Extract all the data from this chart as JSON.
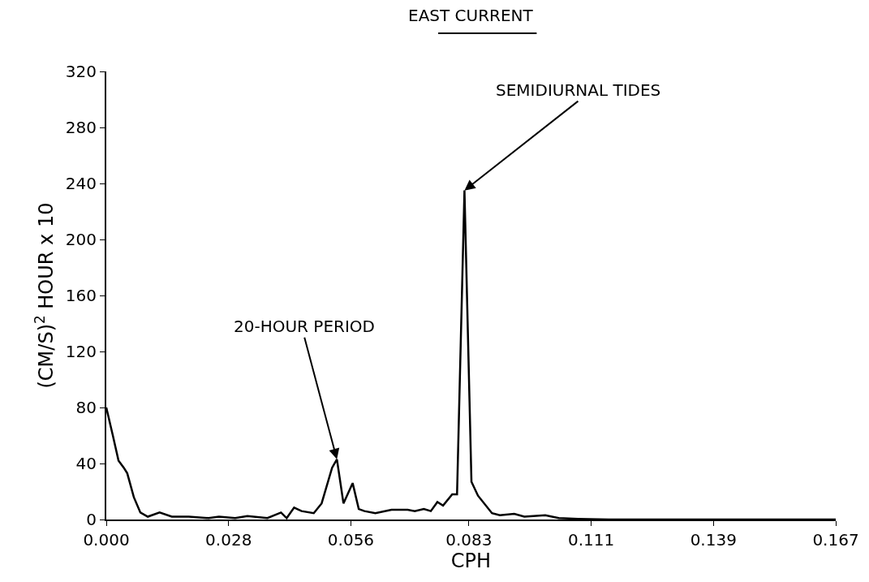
{
  "chart_data": {
    "type": "line",
    "title": "EAST CURRENT",
    "xlabel": "CPH",
    "ylabel": "(CM/S)$^{2}$ HOUR x 10",
    "x": [
      0,
      0.0015,
      0.0028,
      0.004,
      0.0048,
      0.0063,
      0.0078,
      0.0095,
      0.0122,
      0.015,
      0.0189,
      0.0234,
      0.0258,
      0.0295,
      0.0323,
      0.0369,
      0.04,
      0.0413,
      0.043,
      0.0447,
      0.0475,
      0.0493,
      0.0517,
      0.0528,
      0.0543,
      0.0564,
      0.0578,
      0.0591,
      0.0616,
      0.0653,
      0.069,
      0.0706,
      0.0727,
      0.0743,
      0.0758,
      0.0771,
      0.0792,
      0.0803,
      0.082,
      0.0836,
      0.0851,
      0.0883,
      0.0901,
      0.0934,
      0.0957,
      0.1005,
      0.1036,
      0.108,
      0.115,
      0.167
    ],
    "series": [
      {
        "color": "#000000",
        "values": [
          80,
          60,
          42,
          37,
          33,
          16,
          5,
          2,
          5,
          2,
          2,
          1,
          2,
          1,
          2.5,
          1,
          5,
          1,
          8.5,
          6,
          4.5,
          11.5,
          37,
          43,
          11.5,
          26,
          7.5,
          6,
          4.5,
          7,
          7,
          6,
          7.5,
          6,
          12.5,
          10,
          18,
          18,
          235,
          27,
          17,
          4.5,
          3,
          4,
          2,
          3,
          1,
          0.5,
          0,
          0
        ]
      }
    ],
    "xlim": [
      0,
      0.167
    ],
    "xticks": [
      {
        "value": 0,
        "label": "0.000"
      },
      {
        "value": 0.028,
        "label": "0.028"
      },
      {
        "value": 0.056,
        "label": "0.056"
      },
      {
        "value": 0.083,
        "label": "0.083"
      },
      {
        "value": 0.111,
        "label": "0.111"
      },
      {
        "value": 0.139,
        "label": "0.139"
      },
      {
        "value": 0.167,
        "label": "0.167"
      }
    ],
    "ylim": [
      0,
      320
    ],
    "yticks": [
      0,
      40,
      80,
      120,
      160,
      200,
      240,
      280,
      320
    ],
    "marker": "none",
    "line_style": "solid",
    "annotations": [
      {
        "text": "20-HOUR PERIOD",
        "x": 0.0528,
        "y": 43
      },
      {
        "text": "SEMIDIURNAL TIDES",
        "x": 0.082,
        "y": 235
      }
    ]
  }
}
